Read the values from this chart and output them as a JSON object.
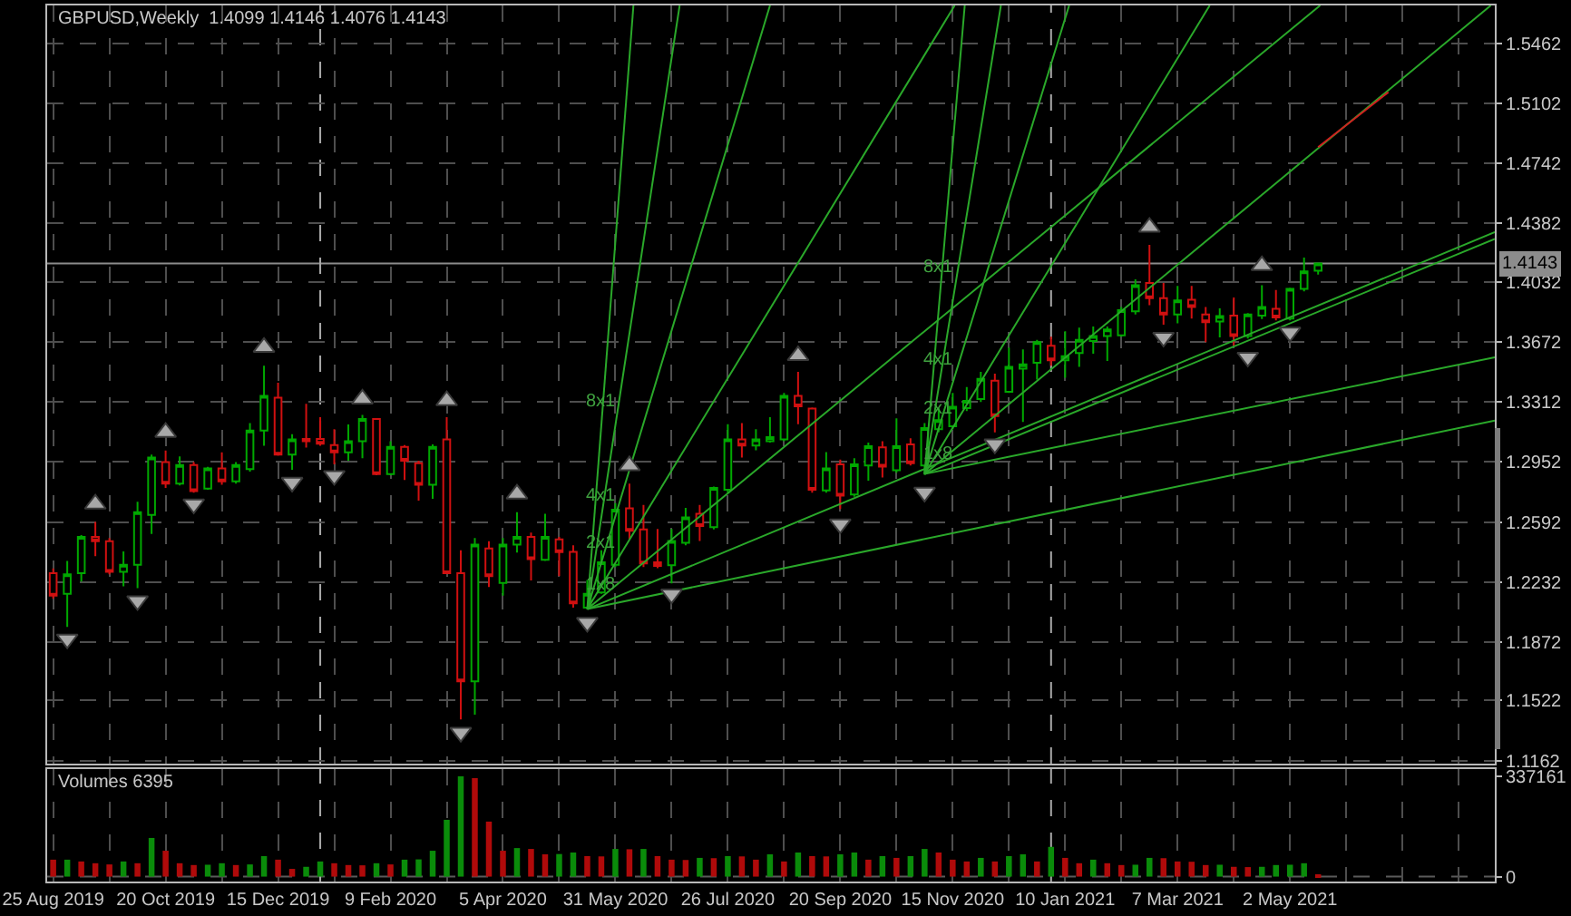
{
  "chart_data": [
    {
      "type": "candlestick",
      "title": "GBPUSD,Weekly  1.4099 1.4146 1.4076 1.4143",
      "x": [
        "2019-08-25",
        "2019-09-01",
        "2019-09-08",
        "2019-09-15",
        "2019-09-22",
        "2019-09-29",
        "2019-10-06",
        "2019-10-13",
        "2019-10-20",
        "2019-10-27",
        "2019-11-03",
        "2019-11-10",
        "2019-11-17",
        "2019-11-24",
        "2019-12-01",
        "2019-12-08",
        "2019-12-15",
        "2019-12-22",
        "2019-12-29",
        "2020-01-05",
        "2020-01-12",
        "2020-01-19",
        "2020-01-26",
        "2020-02-02",
        "2020-02-09",
        "2020-02-16",
        "2020-02-23",
        "2020-03-01",
        "2020-03-08",
        "2020-03-15",
        "2020-03-22",
        "2020-03-29",
        "2020-04-05",
        "2020-04-12",
        "2020-04-19",
        "2020-04-26",
        "2020-05-03",
        "2020-05-10",
        "2020-05-17",
        "2020-05-24",
        "2020-05-31",
        "2020-06-07",
        "2020-06-14",
        "2020-06-21",
        "2020-06-28",
        "2020-07-05",
        "2020-07-12",
        "2020-07-19",
        "2020-07-26",
        "2020-08-02",
        "2020-08-09",
        "2020-08-16",
        "2020-08-23",
        "2020-08-30",
        "2020-09-06",
        "2020-09-13",
        "2020-09-20",
        "2020-09-27",
        "2020-10-04",
        "2020-10-11",
        "2020-10-18",
        "2020-10-25",
        "2020-11-01",
        "2020-11-08",
        "2020-11-15",
        "2020-11-22",
        "2020-11-29",
        "2020-12-06",
        "2020-12-13",
        "2020-12-20",
        "2020-12-27",
        "2021-01-03",
        "2021-01-10",
        "2021-01-17",
        "2021-01-24",
        "2021-01-31",
        "2021-02-07",
        "2021-02-14",
        "2021-02-21",
        "2021-02-28",
        "2021-03-07",
        "2021-03-14",
        "2021-03-21",
        "2021-03-28",
        "2021-04-04",
        "2021-04-11",
        "2021-04-18",
        "2021-04-25",
        "2021-05-02",
        "2021-05-09",
        "2021-05-16"
      ],
      "ohlc": [
        [
          1.2285,
          1.2314,
          1.2133,
          1.2151
        ],
        [
          1.2162,
          1.2358,
          1.1963,
          1.2278
        ],
        [
          1.2285,
          1.2514,
          1.2235,
          1.2503
        ],
        [
          1.2503,
          1.2593,
          1.2387,
          1.2477
        ],
        [
          1.2477,
          1.2496,
          1.2278,
          1.2293
        ],
        [
          1.2293,
          1.2416,
          1.2206,
          1.2336
        ],
        [
          1.2336,
          1.2713,
          1.2195,
          1.2651
        ],
        [
          1.2635,
          1.2996,
          1.2521,
          1.2978
        ],
        [
          1.2952,
          1.3021,
          1.2797,
          1.2822
        ],
        [
          1.2822,
          1.2985,
          1.2811,
          1.2934
        ],
        [
          1.2934,
          1.2952,
          1.2768,
          1.2778
        ],
        [
          1.2793,
          1.2923,
          1.2786,
          1.2913
        ],
        [
          1.2913,
          1.301,
          1.2815,
          1.2836
        ],
        [
          1.2836,
          1.2952,
          1.2822,
          1.2934
        ],
        [
          1.2909,
          1.3185,
          1.2894,
          1.3141
        ],
        [
          1.3141,
          1.3529,
          1.305,
          1.3348
        ],
        [
          1.3337,
          1.3427,
          1.299,
          1.2996
        ],
        [
          1.2996,
          1.3119,
          1.2905,
          1.3087
        ],
        [
          1.309,
          1.3301,
          1.3039,
          1.3076
        ],
        [
          1.309,
          1.3221,
          1.305,
          1.3061
        ],
        [
          1.3054,
          1.3148,
          1.2938,
          1.301
        ],
        [
          1.301,
          1.3177,
          1.296,
          1.3076
        ],
        [
          1.3076,
          1.3235,
          1.2974,
          1.321
        ],
        [
          1.321,
          1.3215,
          1.2873,
          1.288
        ],
        [
          1.288,
          1.3076,
          1.2873,
          1.3043
        ],
        [
          1.3043,
          1.3054,
          1.2844,
          1.296
        ],
        [
          1.2945,
          1.296,
          1.272,
          1.2815
        ],
        [
          1.2815,
          1.3058,
          1.2731,
          1.3043
        ],
        [
          1.3087,
          1.3221,
          1.228,
          1.2285
        ],
        [
          1.2285,
          1.2423,
          1.1408,
          1.1636
        ],
        [
          1.1636,
          1.2496,
          1.1437,
          1.2456
        ],
        [
          1.2434,
          1.2477,
          1.2202,
          1.2267
        ],
        [
          1.2227,
          1.2496,
          1.2151,
          1.2456
        ],
        [
          1.2456,
          1.2651,
          1.2409,
          1.2503
        ],
        [
          1.2503,
          1.2528,
          1.2242,
          1.2369
        ],
        [
          1.2365,
          1.2641,
          1.2358,
          1.2503
        ],
        [
          1.2488,
          1.2503,
          1.2267,
          1.2412
        ],
        [
          1.2413,
          1.2452,
          1.2079,
          1.2104
        ],
        [
          1.2079,
          1.2245,
          1.2072,
          1.2162
        ],
        [
          1.217,
          1.2423,
          1.2162,
          1.2351
        ],
        [
          1.2336,
          1.2706,
          1.2322,
          1.2666
        ],
        [
          1.2674,
          1.2822,
          1.2488,
          1.2539
        ],
        [
          1.2547,
          1.2695,
          1.2322,
          1.2344
        ],
        [
          1.2351,
          1.255,
          1.2315,
          1.2329
        ],
        [
          1.2333,
          1.255,
          1.2224,
          1.2478
        ],
        [
          1.2467,
          1.2677,
          1.2452,
          1.2619
        ],
        [
          1.2641,
          1.2695,
          1.2478,
          1.2568
        ],
        [
          1.2561,
          1.2804,
          1.2547,
          1.2797
        ],
        [
          1.2786,
          1.3178,
          1.2768,
          1.3087
        ],
        [
          1.3087,
          1.3185,
          1.2978,
          1.3051
        ],
        [
          1.3051,
          1.3149,
          1.3022,
          1.3087
        ],
        [
          1.3076,
          1.3221,
          1.3069,
          1.3101
        ],
        [
          1.3087,
          1.3366,
          1.3076,
          1.3348
        ],
        [
          1.3348,
          1.3493,
          1.3178,
          1.3286
        ],
        [
          1.3272,
          1.3279,
          1.2768,
          1.2786
        ],
        [
          1.2782,
          1.3011,
          1.2768,
          1.2913
        ],
        [
          1.2938,
          1.2967,
          1.267,
          1.275
        ],
        [
          1.2757,
          1.2975,
          1.2743,
          1.2938
        ],
        [
          1.2931,
          1.3069,
          1.284,
          1.3047
        ],
        [
          1.304,
          1.3076,
          1.2859,
          1.2924
        ],
        [
          1.2902,
          1.3214,
          1.2887,
          1.3047
        ],
        [
          1.3058,
          1.3094,
          1.2931,
          1.2945
        ],
        [
          1.2931,
          1.3185,
          1.2876,
          1.3156
        ],
        [
          1.3149,
          1.3275,
          1.3131,
          1.3203
        ],
        [
          1.3167,
          1.3366,
          1.3149,
          1.3283
        ],
        [
          1.3275,
          1.3402,
          1.3257,
          1.3319
        ],
        [
          1.333,
          1.3493,
          1.3312,
          1.345
        ],
        [
          1.3439,
          1.3482,
          1.313,
          1.3228
        ],
        [
          1.3373,
          1.3638,
          1.3366,
          1.3522
        ],
        [
          1.3511,
          1.3627,
          1.3192,
          1.3537
        ],
        [
          1.3547,
          1.3685,
          1.3446,
          1.3671
        ],
        [
          1.3649,
          1.3703,
          1.3529,
          1.3562
        ],
        [
          1.3562,
          1.3736,
          1.3457,
          1.3587
        ],
        [
          1.3605,
          1.3758,
          1.3522,
          1.3685
        ],
        [
          1.3678,
          1.3765,
          1.3602,
          1.3707
        ],
        [
          1.3707,
          1.3765,
          1.3558,
          1.3747
        ],
        [
          1.3711,
          1.3881,
          1.3703,
          1.3863
        ],
        [
          1.3856,
          1.4048,
          1.3837,
          1.4012
        ],
        [
          1.4026,
          1.4254,
          1.3892,
          1.3935
        ],
        [
          1.3935,
          1.4026,
          1.3776,
          1.3837
        ],
        [
          1.3837,
          1.4008,
          1.3783,
          1.3921
        ],
        [
          1.3925,
          1.4008,
          1.3812,
          1.3881
        ],
        [
          1.3837,
          1.3881,
          1.3671,
          1.379
        ],
        [
          1.3794,
          1.3874,
          1.37,
          1.3827
        ],
        [
          1.383,
          1.3939,
          1.3649,
          1.3707
        ],
        [
          1.3707,
          1.3845,
          1.3692,
          1.3837
        ],
        [
          1.383,
          1.4012,
          1.3809,
          1.3881
        ],
        [
          1.387,
          1.3983,
          1.3801,
          1.3819
        ],
        [
          1.3812,
          1.3997,
          1.3801,
          1.399
        ],
        [
          1.399,
          1.4178,
          1.3975,
          1.4095
        ],
        [
          1.4099,
          1.4146,
          1.4076,
          1.4143
        ]
      ],
      "colors": [
        "#d01010",
        "#00a800",
        "#00a800",
        "#d01010",
        "#d01010",
        "#00a800",
        "#00a800",
        "#00a800",
        "#d01010",
        "#00a800",
        "#d01010",
        "#00a800",
        "#d01010",
        "#00a800",
        "#00a800",
        "#00a800",
        "#d01010",
        "#00a800",
        "#d01010",
        "#d01010",
        "#d01010",
        "#00a800",
        "#00a800",
        "#d01010",
        "#00a800",
        "#d01010",
        "#d01010",
        "#00a800",
        "#d01010",
        "#d01010",
        "#00a800",
        "#d01010",
        "#00a800",
        "#00a800",
        "#d01010",
        "#00a800",
        "#d01010",
        "#d01010",
        "#00a800",
        "#00a800",
        "#00a800",
        "#d01010",
        "#d01010",
        "#d01010",
        "#00a800",
        "#00a800",
        "#d01010",
        "#00a800",
        "#00a800",
        "#d01010",
        "#00a800",
        "#00a800",
        "#00a800",
        "#d01010",
        "#d01010",
        "#00a800",
        "#d01010",
        "#00a800",
        "#00a800",
        "#d01010",
        "#00a800",
        "#d01010",
        "#00a800",
        "#00a800",
        "#00a800",
        "#00a800",
        "#00a800",
        "#d01010",
        "#00a800",
        "#00a800",
        "#00a800",
        "#d01010",
        "#00a800",
        "#00a800",
        "#00a800",
        "#00a800",
        "#00a800",
        "#00a800",
        "#d01010",
        "#d01010",
        "#00a800",
        "#d01010",
        "#d01010",
        "#00a800",
        "#d01010",
        "#00a800",
        "#00a800",
        "#d01010",
        "#00a800",
        "#00a800",
        "#00a800"
      ],
      "series": [
        {
          "type": "line",
          "color": "#2aa82a",
          "x": [
            "2020-05-17",
            "2020-06-09"
          ],
          "values": [
            1.207,
            1.569
          ]
        },
        {
          "type": "line",
          "color": "#2aa82a",
          "x": [
            "2020-05-17",
            "2020-07-02"
          ],
          "values": [
            1.207,
            1.569
          ]
        },
        {
          "type": "line",
          "color": "#2aa82a",
          "x": [
            "2020-05-17",
            "2020-08-16"
          ],
          "values": [
            1.207,
            1.569
          ]
        },
        {
          "type": "line",
          "color": "#2aa82a",
          "x": [
            "2020-05-17",
            "2020-11-16"
          ],
          "values": [
            1.207,
            1.569
          ]
        },
        {
          "type": "line",
          "color": "#2aa82a",
          "x": [
            "2020-05-17",
            "2021-05-17"
          ],
          "values": [
            1.207,
            1.569
          ]
        },
        {
          "type": "line",
          "color": "#2aa82a",
          "x": [
            "2020-05-17",
            "2021-08-12"
          ],
          "values": [
            1.207,
            1.433
          ]
        },
        {
          "type": "line",
          "color": "#2aa82a",
          "x": [
            "2020-05-17",
            "2021-08-12"
          ],
          "values": [
            1.207,
            1.32
          ]
        },
        {
          "type": "line",
          "color": "#2aa82a",
          "x": [
            "2020-11-01",
            "2020-11-21"
          ],
          "values": [
            1.288,
            1.569
          ]
        },
        {
          "type": "line",
          "color": "#2aa82a",
          "x": [
            "2020-11-01",
            "2020-12-09"
          ],
          "values": [
            1.288,
            1.569
          ]
        },
        {
          "type": "line",
          "color": "#2aa82a",
          "x": [
            "2020-11-01",
            "2021-01-12"
          ],
          "values": [
            1.288,
            1.569
          ]
        },
        {
          "type": "line",
          "color": "#2aa82a",
          "x": [
            "2020-11-01",
            "2021-03-23"
          ],
          "values": [
            1.288,
            1.569
          ]
        },
        {
          "type": "line",
          "color": "#2aa82a",
          "x": [
            "2020-11-01",
            "2021-08-10"
          ],
          "values": [
            1.288,
            1.569
          ]
        },
        {
          "type": "line",
          "color": "#2aa82a",
          "x": [
            "2020-11-01",
            "2021-08-12"
          ],
          "values": [
            1.288,
            1.429
          ]
        },
        {
          "type": "line",
          "color": "#2aa82a",
          "x": [
            "2020-11-01",
            "2021-08-12"
          ],
          "values": [
            1.288,
            1.358
          ]
        },
        {
          "type": "line",
          "color": "#d02020",
          "x": [
            "2021-05-16",
            "2021-06-20"
          ],
          "values": [
            1.484,
            1.517
          ]
        },
        {
          "type": "scatter",
          "marker": "triangle",
          "color": "#a8a8a8",
          "x": [
            "2019-09-01",
            "2019-09-15",
            "2019-10-06",
            "2019-10-20",
            "2019-11-03",
            "2019-12-08",
            "2019-12-22",
            "2020-01-12",
            "2020-01-26",
            "2020-03-08",
            "2020-03-15",
            "2020-04-12",
            "2020-05-17",
            "2020-06-07",
            "2020-06-28",
            "2020-08-30",
            "2020-09-20",
            "2020-11-01",
            "2020-12-06",
            "2021-02-21",
            "2021-02-28",
            "2021-04-11",
            "2021-04-18",
            "2021-05-02"
          ],
          "values": [
            1.189,
            1.27,
            1.212,
            1.313,
            1.27,
            1.364,
            1.283,
            1.287,
            1.333,
            1.332,
            1.133,
            1.276,
            1.199,
            1.293,
            1.216,
            1.359,
            1.258,
            1.277,
            1.306,
            1.436,
            1.37,
            1.358,
            1.413,
            1.373
          ]
        }
      ],
      "annotations": [
        {
          "text": "8x1",
          "x": "2020-05-24",
          "y": 1.331
        },
        {
          "text": "4x1",
          "x": "2020-05-24",
          "y": 1.275
        },
        {
          "text": "2x1",
          "x": "2020-05-24",
          "y": 1.246
        },
        {
          "text": "1x8",
          "x": "2020-05-24",
          "y": 1.221
        },
        {
          "text": "8x1",
          "x": "2020-11-08",
          "y": 1.412
        },
        {
          "text": "4x1",
          "x": "2020-11-08",
          "y": 1.356
        },
        {
          "text": "2x1",
          "x": "2020-11-08",
          "y": 1.327
        },
        {
          "text": "1x8",
          "x": "2020-11-08",
          "y": 1.3
        }
      ],
      "ref_lines": [
        {
          "axis": "y",
          "value": 1.4143,
          "label": "1.4143",
          "color": "#8c8c8c"
        },
        {
          "axis": "x",
          "value": "2020-01-05",
          "color": "#a8a8a8",
          "line_style": "dashed"
        },
        {
          "axis": "x",
          "value": "2021-01-03",
          "color": "#a8a8a8",
          "line_style": "dashed"
        }
      ],
      "xlim": [
        "2019-08-22",
        "2021-08-12"
      ],
      "xticks": [
        {
          "value": "2019-08-25",
          "label": null
        },
        {
          "value": "2019-09-22",
          "label": null
        },
        {
          "value": "2019-10-20",
          "label": null
        },
        {
          "value": "2019-11-17",
          "label": null
        },
        {
          "value": "2019-12-15",
          "label": null
        },
        {
          "value": "2020-01-12",
          "label": null
        },
        {
          "value": "2020-02-09",
          "label": null
        },
        {
          "value": "2020-03-08",
          "label": null
        },
        {
          "value": "2020-04-05",
          "label": null
        },
        {
          "value": "2020-05-03",
          "label": null
        },
        {
          "value": "2020-05-31",
          "label": null
        },
        {
          "value": "2020-06-28",
          "label": null
        },
        {
          "value": "2020-07-26",
          "label": null
        },
        {
          "value": "2020-08-23",
          "label": null
        },
        {
          "value": "2020-09-20",
          "label": null
        },
        {
          "value": "2020-10-18",
          "label": null
        },
        {
          "value": "2020-11-15",
          "label": null
        },
        {
          "value": "2020-12-13",
          "label": null
        },
        {
          "value": "2021-01-10",
          "label": null
        },
        {
          "value": "2021-02-07",
          "label": null
        },
        {
          "value": "2021-03-07",
          "label": null
        },
        {
          "value": "2021-04-04",
          "label": null
        },
        {
          "value": "2021-05-02",
          "label": null
        },
        {
          "value": "2021-05-30",
          "label": null
        },
        {
          "value": "2021-06-27",
          "label": null
        },
        {
          "value": "2021-07-25",
          "label": null
        }
      ],
      "ylim": [
        1.1143,
        1.569
      ],
      "yticks": [
        1.1162,
        1.1522,
        1.1872,
        1.2232,
        1.2592,
        1.2952,
        1.3312,
        1.3672,
        1.4032,
        1.4382,
        1.4742,
        1.5102,
        1.5462
      ],
      "grid": true,
      "tick_labels": "y"
    },
    {
      "type": "bar",
      "title": "Volumes 6395",
      "x": [
        "2019-08-25",
        "2019-09-01",
        "2019-09-08",
        "2019-09-15",
        "2019-09-22",
        "2019-09-29",
        "2019-10-06",
        "2019-10-13",
        "2019-10-20",
        "2019-10-27",
        "2019-11-03",
        "2019-11-10",
        "2019-11-17",
        "2019-11-24",
        "2019-12-01",
        "2019-12-08",
        "2019-12-15",
        "2019-12-22",
        "2019-12-29",
        "2020-01-05",
        "2020-01-12",
        "2020-01-19",
        "2020-01-26",
        "2020-02-02",
        "2020-02-09",
        "2020-02-16",
        "2020-02-23",
        "2020-03-01",
        "2020-03-08",
        "2020-03-15",
        "2020-03-22",
        "2020-03-29",
        "2020-04-05",
        "2020-04-12",
        "2020-04-19",
        "2020-04-26",
        "2020-05-03",
        "2020-05-10",
        "2020-05-17",
        "2020-05-24",
        "2020-05-31",
        "2020-06-07",
        "2020-06-14",
        "2020-06-21",
        "2020-06-28",
        "2020-07-05",
        "2020-07-12",
        "2020-07-19",
        "2020-07-26",
        "2020-08-02",
        "2020-08-09",
        "2020-08-16",
        "2020-08-23",
        "2020-08-30",
        "2020-09-06",
        "2020-09-13",
        "2020-09-20",
        "2020-09-27",
        "2020-10-04",
        "2020-10-11",
        "2020-10-18",
        "2020-10-25",
        "2020-11-01",
        "2020-11-08",
        "2020-11-15",
        "2020-11-22",
        "2020-11-29",
        "2020-12-06",
        "2020-12-13",
        "2020-12-20",
        "2020-12-27",
        "2021-01-03",
        "2021-01-10",
        "2021-01-17",
        "2021-01-24",
        "2021-01-31",
        "2021-02-07",
        "2021-02-14",
        "2021-02-21",
        "2021-02-28",
        "2021-03-07",
        "2021-03-14",
        "2021-03-21",
        "2021-03-28",
        "2021-04-04",
        "2021-04-11",
        "2021-04-18",
        "2021-04-25",
        "2021-05-02",
        "2021-05-09",
        "2021-05-16"
      ],
      "values": [
        57000,
        57000,
        51000,
        45000,
        41000,
        51000,
        45000,
        130000,
        87000,
        45000,
        39000,
        40000,
        45000,
        39000,
        41000,
        69000,
        57000,
        26000,
        33000,
        51000,
        45000,
        39000,
        38000,
        45000,
        41000,
        57000,
        58000,
        87000,
        191000,
        337161,
        331000,
        185000,
        87000,
        96000,
        93000,
        75000,
        76000,
        81000,
        69000,
        68000,
        93000,
        92000,
        93000,
        69000,
        57000,
        56000,
        63000,
        62000,
        69000,
        68000,
        57000,
        75000,
        51000,
        81000,
        69000,
        68000,
        75000,
        81000,
        57000,
        69000,
        63000,
        69000,
        93000,
        81000,
        57000,
        51000,
        63000,
        51000,
        69000,
        75000,
        51000,
        100000,
        63000,
        45000,
        57000,
        45000,
        39000,
        40000,
        63000,
        62000,
        51000,
        50000,
        39000,
        40000,
        33000,
        32000,
        33000,
        39000,
        40000,
        45000,
        6395
      ],
      "colors": [
        "#b00a0a",
        "#0a8c0a",
        "#b00a0a",
        "#b00a0a",
        "#b00a0a",
        "#0a8c0a",
        "#b00a0a",
        "#0a8c0a",
        "#b00a0a",
        "#b00a0a",
        "#b00a0a",
        "#0a8c0a",
        "#0a8c0a",
        "#b00a0a",
        "#0a8c0a",
        "#0a8c0a",
        "#b00a0a",
        "#b00a0a",
        "#0a8c0a",
        "#0a8c0a",
        "#b00a0a",
        "#b00a0a",
        "#b00a0a",
        "#0a8c0a",
        "#b00a0a",
        "#0a8c0a",
        "#0a8c0a",
        "#0a8c0a",
        "#0a8c0a",
        "#0a8c0a",
        "#b00a0a",
        "#b00a0a",
        "#b00a0a",
        "#0a8c0a",
        "#b00a0a",
        "#b00a0a",
        "#0a8c0a",
        "#0a8c0a",
        "#b00a0a",
        "#b00a0a",
        "#0a8c0a",
        "#b00a0a",
        "#0a8c0a",
        "#b00a0a",
        "#b00a0a",
        "#b00a0a",
        "#0a8c0a",
        "#b00a0a",
        "#0a8c0a",
        "#b00a0a",
        "#b00a0a",
        "#0a8c0a",
        "#b00a0a",
        "#0a8c0a",
        "#b00a0a",
        "#b00a0a",
        "#0a8c0a",
        "#0a8c0a",
        "#b00a0a",
        "#0a8c0a",
        "#b00a0a",
        "#0a8c0a",
        "#0a8c0a",
        "#b00a0a",
        "#b00a0a",
        "#b00a0a",
        "#0a8c0a",
        "#b00a0a",
        "#0a8c0a",
        "#0a8c0a",
        "#b00a0a",
        "#0a8c0a",
        "#b00a0a",
        "#b00a0a",
        "#0a8c0a",
        "#b00a0a",
        "#b00a0a",
        "#0a8c0a",
        "#0a8c0a",
        "#b00a0a",
        "#b00a0a",
        "#b00a0a",
        "#b00a0a",
        "#0a8c0a",
        "#b00a0a",
        "#b00a0a",
        "#0a8c0a",
        "#0a8c0a",
        "#0a8c0a",
        "#0a8c0a",
        "#b00a0a"
      ],
      "ref_lines": [
        {
          "axis": "y",
          "value": 0,
          "color": "#5a5a5a",
          "line_style": "dashed"
        },
        {
          "axis": "x",
          "value": "2020-01-05",
          "color": "#a8a8a8",
          "line_style": "dashed"
        },
        {
          "axis": "x",
          "value": "2021-01-03",
          "color": "#a8a8a8",
          "line_style": "dashed"
        }
      ],
      "xlim": [
        "2019-08-22",
        "2021-08-12"
      ],
      "xticks": [
        {
          "value": "2019-08-25",
          "label": "25 Aug 2019"
        },
        {
          "value": "2019-09-22",
          "label": null
        },
        {
          "value": "2019-10-20",
          "label": "20 Oct 2019"
        },
        {
          "value": "2019-11-17",
          "label": null
        },
        {
          "value": "2019-12-15",
          "label": "15 Dec 2019"
        },
        {
          "value": "2020-01-12",
          "label": null
        },
        {
          "value": "2020-02-09",
          "label": "9 Feb 2020"
        },
        {
          "value": "2020-03-08",
          "label": null
        },
        {
          "value": "2020-04-05",
          "label": "5 Apr 2020"
        },
        {
          "value": "2020-05-03",
          "label": null
        },
        {
          "value": "2020-05-31",
          "label": "31 May 2020"
        },
        {
          "value": "2020-06-28",
          "label": null
        },
        {
          "value": "2020-07-26",
          "label": "26 Jul 2020"
        },
        {
          "value": "2020-08-23",
          "label": null
        },
        {
          "value": "2020-09-20",
          "label": "20 Sep 2020"
        },
        {
          "value": "2020-10-18",
          "label": null
        },
        {
          "value": "2020-11-15",
          "label": "15 Nov 2020"
        },
        {
          "value": "2020-12-13",
          "label": null
        },
        {
          "value": "2021-01-10",
          "label": "10 Jan 2021"
        },
        {
          "value": "2021-02-07",
          "label": null
        },
        {
          "value": "2021-03-07",
          "label": "7 Mar 2021"
        },
        {
          "value": "2021-04-04",
          "label": null
        },
        {
          "value": "2021-05-02",
          "label": "2 May 2021"
        },
        {
          "value": "2021-05-30",
          "label": null
        },
        {
          "value": "2021-06-27",
          "label": null
        },
        {
          "value": "2021-07-25",
          "label": null
        }
      ],
      "ylim": [
        -16500,
        361500
      ],
      "yticks": [
        0,
        337161
      ],
      "grid": "x"
    }
  ]
}
